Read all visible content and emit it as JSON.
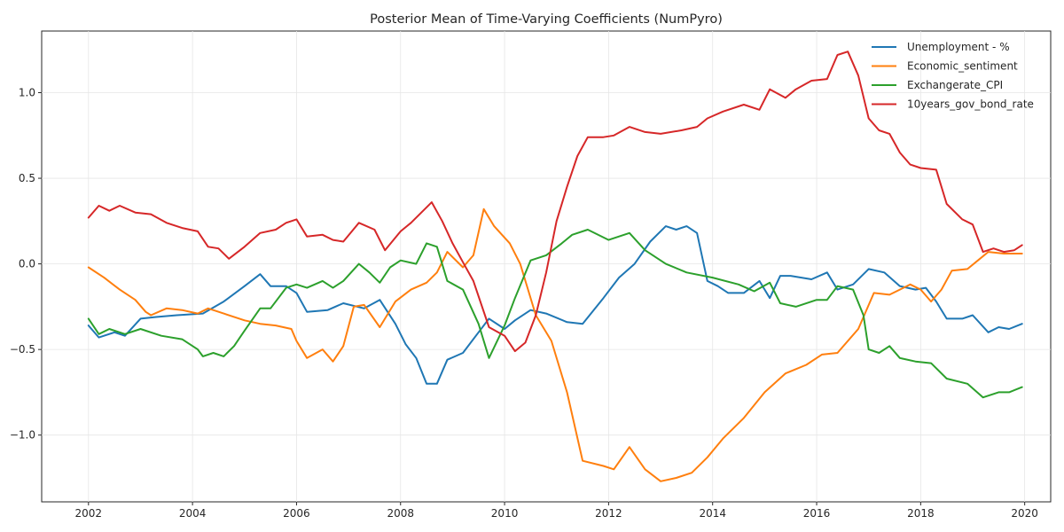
{
  "chart_data": {
    "type": "line",
    "title": "Posterior Mean of Time-Varying Coefficients (NumPyro)",
    "xlabel": "",
    "ylabel": "",
    "xlim": [
      2001.1,
      2020.5
    ],
    "ylim": [
      -1.39,
      1.36
    ],
    "xticks": [
      2002,
      2004,
      2006,
      2008,
      2010,
      2012,
      2014,
      2016,
      2018,
      2020
    ],
    "xtick_labels": [
      "2002",
      "2004",
      "2006",
      "2008",
      "2010",
      "2012",
      "2014",
      "2016",
      "2018",
      "2020"
    ],
    "yticks": [
      -1.0,
      -0.5,
      0.0,
      0.5,
      1.0
    ],
    "ytick_labels": [
      "−1.0",
      "−0.5",
      "0.0",
      "0.5",
      "1.0"
    ],
    "grid": true,
    "legend_position": "top-right",
    "series": [
      {
        "name": "Unemployment - %",
        "color": "#1f77b4",
        "points": [
          [
            2002.0,
            -0.36
          ],
          [
            2002.2,
            -0.43
          ],
          [
            2002.5,
            -0.4
          ],
          [
            2002.7,
            -0.42
          ],
          [
            2003.0,
            -0.32
          ],
          [
            2003.3,
            -0.31
          ],
          [
            2003.7,
            -0.3
          ],
          [
            2004.2,
            -0.29
          ],
          [
            2004.6,
            -0.22
          ],
          [
            2005.0,
            -0.13
          ],
          [
            2005.3,
            -0.06
          ],
          [
            2005.5,
            -0.13
          ],
          [
            2005.8,
            -0.13
          ],
          [
            2006.0,
            -0.17
          ],
          [
            2006.2,
            -0.28
          ],
          [
            2006.6,
            -0.27
          ],
          [
            2006.9,
            -0.23
          ],
          [
            2007.3,
            -0.26
          ],
          [
            2007.6,
            -0.21
          ],
          [
            2007.9,
            -0.35
          ],
          [
            2008.1,
            -0.47
          ],
          [
            2008.3,
            -0.55
          ],
          [
            2008.5,
            -0.7
          ],
          [
            2008.7,
            -0.7
          ],
          [
            2008.9,
            -0.56
          ],
          [
            2009.2,
            -0.52
          ],
          [
            2009.5,
            -0.4
          ],
          [
            2009.7,
            -0.32
          ],
          [
            2010.0,
            -0.38
          ],
          [
            2010.2,
            -0.33
          ],
          [
            2010.5,
            -0.27
          ],
          [
            2010.8,
            -0.29
          ],
          [
            2011.2,
            -0.34
          ],
          [
            2011.5,
            -0.35
          ],
          [
            2011.9,
            -0.2
          ],
          [
            2012.2,
            -0.08
          ],
          [
            2012.5,
            0.0
          ],
          [
            2012.8,
            0.13
          ],
          [
            2013.1,
            0.22
          ],
          [
            2013.3,
            0.2
          ],
          [
            2013.5,
            0.22
          ],
          [
            2013.7,
            0.18
          ],
          [
            2013.9,
            -0.1
          ],
          [
            2014.1,
            -0.13
          ],
          [
            2014.3,
            -0.17
          ],
          [
            2014.6,
            -0.17
          ],
          [
            2014.9,
            -0.1
          ],
          [
            2015.1,
            -0.2
          ],
          [
            2015.3,
            -0.07
          ],
          [
            2015.5,
            -0.07
          ],
          [
            2015.9,
            -0.09
          ],
          [
            2016.2,
            -0.05
          ],
          [
            2016.4,
            -0.15
          ],
          [
            2016.7,
            -0.12
          ],
          [
            2017.0,
            -0.03
          ],
          [
            2017.3,
            -0.05
          ],
          [
            2017.6,
            -0.13
          ],
          [
            2017.9,
            -0.15
          ],
          [
            2018.1,
            -0.14
          ],
          [
            2018.3,
            -0.22
          ],
          [
            2018.5,
            -0.32
          ],
          [
            2018.8,
            -0.32
          ],
          [
            2019.0,
            -0.3
          ],
          [
            2019.3,
            -0.4
          ],
          [
            2019.5,
            -0.37
          ],
          [
            2019.7,
            -0.38
          ],
          [
            2019.95,
            -0.35
          ]
        ]
      },
      {
        "name": "Economic_sentiment",
        "color": "#ff7f0e",
        "points": [
          [
            2002.0,
            -0.02
          ],
          [
            2002.3,
            -0.08
          ],
          [
            2002.6,
            -0.15
          ],
          [
            2002.9,
            -0.21
          ],
          [
            2003.1,
            -0.28
          ],
          [
            2003.2,
            -0.3
          ],
          [
            2003.5,
            -0.26
          ],
          [
            2003.8,
            -0.27
          ],
          [
            2004.1,
            -0.29
          ],
          [
            2004.3,
            -0.26
          ],
          [
            2004.6,
            -0.29
          ],
          [
            2005.0,
            -0.33
          ],
          [
            2005.3,
            -0.35
          ],
          [
            2005.6,
            -0.36
          ],
          [
            2005.9,
            -0.38
          ],
          [
            2006.0,
            -0.45
          ],
          [
            2006.2,
            -0.55
          ],
          [
            2006.5,
            -0.5
          ],
          [
            2006.7,
            -0.57
          ],
          [
            2006.9,
            -0.48
          ],
          [
            2007.1,
            -0.25
          ],
          [
            2007.3,
            -0.24
          ],
          [
            2007.6,
            -0.37
          ],
          [
            2007.9,
            -0.22
          ],
          [
            2008.2,
            -0.15
          ],
          [
            2008.5,
            -0.11
          ],
          [
            2008.7,
            -0.05
          ],
          [
            2008.9,
            0.07
          ],
          [
            2009.2,
            -0.02
          ],
          [
            2009.4,
            0.05
          ],
          [
            2009.6,
            0.32
          ],
          [
            2009.8,
            0.22
          ],
          [
            2010.1,
            0.12
          ],
          [
            2010.3,
            0.0
          ],
          [
            2010.6,
            -0.3
          ],
          [
            2010.9,
            -0.45
          ],
          [
            2011.2,
            -0.75
          ],
          [
            2011.5,
            -1.15
          ],
          [
            2011.9,
            -1.18
          ],
          [
            2012.1,
            -1.2
          ],
          [
            2012.4,
            -1.07
          ],
          [
            2012.7,
            -1.2
          ],
          [
            2013.0,
            -1.27
          ],
          [
            2013.3,
            -1.25
          ],
          [
            2013.6,
            -1.22
          ],
          [
            2013.9,
            -1.13
          ],
          [
            2014.2,
            -1.02
          ],
          [
            2014.6,
            -0.9
          ],
          [
            2015.0,
            -0.75
          ],
          [
            2015.4,
            -0.64
          ],
          [
            2015.8,
            -0.59
          ],
          [
            2016.1,
            -0.53
          ],
          [
            2016.4,
            -0.52
          ],
          [
            2016.8,
            -0.38
          ],
          [
            2017.1,
            -0.17
          ],
          [
            2017.4,
            -0.18
          ],
          [
            2017.6,
            -0.15
          ],
          [
            2017.8,
            -0.12
          ],
          [
            2018.0,
            -0.15
          ],
          [
            2018.2,
            -0.22
          ],
          [
            2018.4,
            -0.15
          ],
          [
            2018.6,
            -0.04
          ],
          [
            2018.9,
            -0.03
          ],
          [
            2019.1,
            0.02
          ],
          [
            2019.3,
            0.07
          ],
          [
            2019.6,
            0.06
          ],
          [
            2019.95,
            0.06
          ]
        ]
      },
      {
        "name": "Exchangerate_CPI",
        "color": "#2ca02c",
        "points": [
          [
            2002.0,
            -0.32
          ],
          [
            2002.2,
            -0.41
          ],
          [
            2002.4,
            -0.38
          ],
          [
            2002.7,
            -0.41
          ],
          [
            2003.0,
            -0.38
          ],
          [
            2003.4,
            -0.42
          ],
          [
            2003.8,
            -0.44
          ],
          [
            2004.1,
            -0.5
          ],
          [
            2004.2,
            -0.54
          ],
          [
            2004.4,
            -0.52
          ],
          [
            2004.6,
            -0.54
          ],
          [
            2004.8,
            -0.48
          ],
          [
            2005.0,
            -0.39
          ],
          [
            2005.3,
            -0.26
          ],
          [
            2005.5,
            -0.26
          ],
          [
            2005.8,
            -0.14
          ],
          [
            2006.0,
            -0.12
          ],
          [
            2006.2,
            -0.14
          ],
          [
            2006.5,
            -0.1
          ],
          [
            2006.7,
            -0.14
          ],
          [
            2006.9,
            -0.1
          ],
          [
            2007.2,
            0.0
          ],
          [
            2007.4,
            -0.05
          ],
          [
            2007.6,
            -0.11
          ],
          [
            2007.8,
            -0.02
          ],
          [
            2008.0,
            0.02
          ],
          [
            2008.3,
            0.0
          ],
          [
            2008.5,
            0.12
          ],
          [
            2008.7,
            0.1
          ],
          [
            2008.9,
            -0.1
          ],
          [
            2009.2,
            -0.15
          ],
          [
            2009.5,
            -0.35
          ],
          [
            2009.7,
            -0.55
          ],
          [
            2010.0,
            -0.36
          ],
          [
            2010.2,
            -0.2
          ],
          [
            2010.5,
            0.02
          ],
          [
            2010.8,
            0.05
          ],
          [
            2011.1,
            0.12
          ],
          [
            2011.3,
            0.17
          ],
          [
            2011.6,
            0.2
          ],
          [
            2012.0,
            0.14
          ],
          [
            2012.4,
            0.18
          ],
          [
            2012.7,
            0.08
          ],
          [
            2013.1,
            0.0
          ],
          [
            2013.5,
            -0.05
          ],
          [
            2014.0,
            -0.08
          ],
          [
            2014.5,
            -0.12
          ],
          [
            2014.8,
            -0.16
          ],
          [
            2015.1,
            -0.11
          ],
          [
            2015.3,
            -0.23
          ],
          [
            2015.6,
            -0.25
          ],
          [
            2016.0,
            -0.21
          ],
          [
            2016.2,
            -0.21
          ],
          [
            2016.4,
            -0.13
          ],
          [
            2016.7,
            -0.15
          ],
          [
            2016.9,
            -0.3
          ],
          [
            2017.0,
            -0.5
          ],
          [
            2017.2,
            -0.52
          ],
          [
            2017.4,
            -0.48
          ],
          [
            2017.6,
            -0.55
          ],
          [
            2017.9,
            -0.57
          ],
          [
            2018.2,
            -0.58
          ],
          [
            2018.5,
            -0.67
          ],
          [
            2018.9,
            -0.7
          ],
          [
            2019.2,
            -0.78
          ],
          [
            2019.5,
            -0.75
          ],
          [
            2019.7,
            -0.75
          ],
          [
            2019.95,
            -0.72
          ]
        ]
      },
      {
        "name": "10years_gov_bond_rate",
        "color": "#d62728",
        "points": [
          [
            2002.0,
            0.27
          ],
          [
            2002.2,
            0.34
          ],
          [
            2002.4,
            0.31
          ],
          [
            2002.6,
            0.34
          ],
          [
            2002.9,
            0.3
          ],
          [
            2003.2,
            0.29
          ],
          [
            2003.5,
            0.24
          ],
          [
            2003.8,
            0.21
          ],
          [
            2004.1,
            0.19
          ],
          [
            2004.3,
            0.1
          ],
          [
            2004.5,
            0.09
          ],
          [
            2004.7,
            0.03
          ],
          [
            2005.0,
            0.1
          ],
          [
            2005.3,
            0.18
          ],
          [
            2005.6,
            0.2
          ],
          [
            2005.8,
            0.24
          ],
          [
            2006.0,
            0.26
          ],
          [
            2006.2,
            0.16
          ],
          [
            2006.5,
            0.17
          ],
          [
            2006.7,
            0.14
          ],
          [
            2006.9,
            0.13
          ],
          [
            2007.2,
            0.24
          ],
          [
            2007.5,
            0.2
          ],
          [
            2007.7,
            0.08
          ],
          [
            2008.0,
            0.19
          ],
          [
            2008.2,
            0.24
          ],
          [
            2008.4,
            0.3
          ],
          [
            2008.6,
            0.36
          ],
          [
            2008.8,
            0.25
          ],
          [
            2009.0,
            0.12
          ],
          [
            2009.2,
            0.01
          ],
          [
            2009.4,
            -0.1
          ],
          [
            2009.7,
            -0.37
          ],
          [
            2010.0,
            -0.42
          ],
          [
            2010.2,
            -0.51
          ],
          [
            2010.4,
            -0.46
          ],
          [
            2010.6,
            -0.3
          ],
          [
            2010.8,
            -0.05
          ],
          [
            2011.0,
            0.25
          ],
          [
            2011.2,
            0.45
          ],
          [
            2011.4,
            0.63
          ],
          [
            2011.6,
            0.74
          ],
          [
            2011.9,
            0.74
          ],
          [
            2012.1,
            0.75
          ],
          [
            2012.4,
            0.8
          ],
          [
            2012.7,
            0.77
          ],
          [
            2013.0,
            0.76
          ],
          [
            2013.4,
            0.78
          ],
          [
            2013.7,
            0.8
          ],
          [
            2013.9,
            0.85
          ],
          [
            2014.2,
            0.89
          ],
          [
            2014.6,
            0.93
          ],
          [
            2014.9,
            0.9
          ],
          [
            2015.1,
            1.02
          ],
          [
            2015.4,
            0.97
          ],
          [
            2015.6,
            1.02
          ],
          [
            2015.9,
            1.07
          ],
          [
            2016.2,
            1.08
          ],
          [
            2016.4,
            1.22
          ],
          [
            2016.6,
            1.24
          ],
          [
            2016.8,
            1.1
          ],
          [
            2017.0,
            0.85
          ],
          [
            2017.2,
            0.78
          ],
          [
            2017.4,
            0.76
          ],
          [
            2017.6,
            0.65
          ],
          [
            2017.8,
            0.58
          ],
          [
            2018.0,
            0.56
          ],
          [
            2018.3,
            0.55
          ],
          [
            2018.5,
            0.35
          ],
          [
            2018.8,
            0.26
          ],
          [
            2019.0,
            0.23
          ],
          [
            2019.2,
            0.07
          ],
          [
            2019.4,
            0.09
          ],
          [
            2019.6,
            0.07
          ],
          [
            2019.8,
            0.08
          ],
          [
            2019.95,
            0.11
          ]
        ]
      }
    ]
  }
}
